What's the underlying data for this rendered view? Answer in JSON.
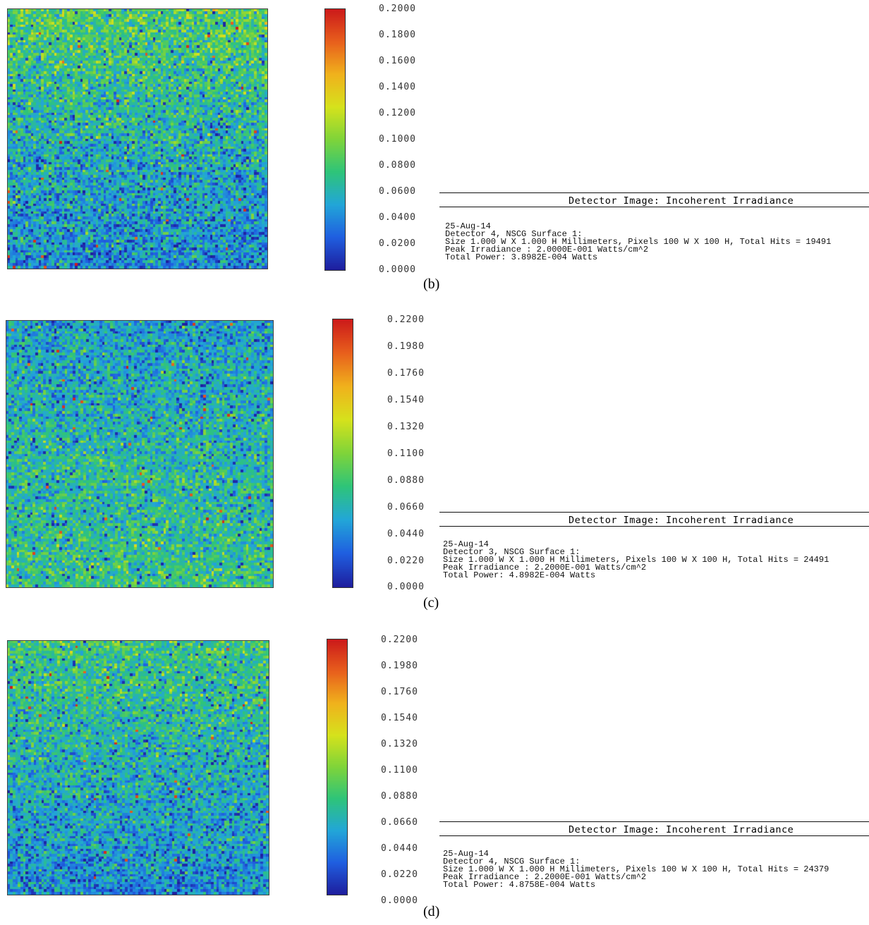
{
  "panels": [
    {
      "caption": "(b)",
      "colorbar_ticks": [
        "0.2000",
        "0.1800",
        "0.1600",
        "0.1400",
        "0.1200",
        "0.1000",
        "0.0800",
        "0.0600",
        "0.0400",
        "0.0200",
        "0.0000"
      ],
      "title": "Detector Image: Incoherent Irradiance",
      "info": [
        "25-Aug-14",
        "Detector 4, NSCG Surface 1:",
        "Size 1.000 W X 1.000 H Millimeters, Pixels 100 W X 100 H, Total Hits = 19491",
        "Peak Irradiance : 2.0000E-001 Watts/cm^2",
        "Total Power: 3.8982E-004 Watts"
      ]
    },
    {
      "caption": "(c)",
      "colorbar_ticks": [
        "0.2200",
        "0.1980",
        "0.1760",
        "0.1540",
        "0.1320",
        "0.1100",
        "0.0880",
        "0.0660",
        "0.0440",
        "0.0220",
        "0.0000"
      ],
      "title": "Detector Image: Incoherent Irradiance",
      "info": [
        "25-Aug-14",
        "Detector 3, NSCG Surface 1:",
        "Size 1.000 W X 1.000 H Millimeters, Pixels 100 W X 100 H, Total Hits = 24491",
        "Peak Irradiance : 2.2000E-001 Watts/cm^2",
        "Total Power: 4.8982E-004 Watts"
      ]
    },
    {
      "caption": "(d)",
      "colorbar_ticks": [
        "0.2200",
        "0.1980",
        "0.1760",
        "0.1540",
        "0.1320",
        "0.1100",
        "0.0880",
        "0.0660",
        "0.0440",
        "0.0220",
        "0.0000"
      ],
      "title": "Detector Image: Incoherent Irradiance",
      "info": [
        "25-Aug-14",
        "Detector 4, NSCG Surface 1:",
        "Size 1.000 W X 1.000 H Millimeters, Pixels 100 W X 100 H, Total Hits = 24379",
        "Peak Irradiance : 2.2000E-001 Watts/cm^2",
        "Total Power: 4.8758E-004 Watts"
      ]
    }
  ],
  "colormap": [
    "#1e1e9e",
    "#1f5fe0",
    "#22a6d8",
    "#2ec47a",
    "#7fd43a",
    "#d6e21c",
    "#f0b21c",
    "#e8601c",
    "#cc1a1a"
  ],
  "chart_data": [
    {
      "type": "heatmap",
      "grid_size": [
        100,
        100
      ],
      "value_range": [
        0.0,
        0.2
      ],
      "colorbar_ticks": [
        0.2,
        0.18,
        0.16,
        0.14,
        0.12,
        0.1,
        0.08,
        0.06,
        0.04,
        0.02,
        0.0
      ],
      "mean_value_by_row_band": {
        "top": 0.085,
        "middle": 0.06,
        "bottom": 0.04
      }
    },
    {
      "type": "heatmap",
      "grid_size": [
        100,
        100
      ],
      "value_range": [
        0.0,
        0.22
      ],
      "colorbar_ticks": [
        0.22,
        0.198,
        0.176,
        0.154,
        0.132,
        0.11,
        0.088,
        0.066,
        0.044,
        0.022,
        0.0
      ],
      "mean_value_by_row_band": {
        "top": 0.055,
        "middle": 0.07,
        "bottom": 0.08
      }
    },
    {
      "type": "heatmap",
      "grid_size": [
        100,
        100
      ],
      "value_range": [
        0.0,
        0.22
      ],
      "colorbar_ticks": [
        0.22,
        0.198,
        0.176,
        0.154,
        0.132,
        0.11,
        0.088,
        0.066,
        0.044,
        0.022,
        0.0
      ],
      "mean_value_by_row_band": {
        "top": 0.085,
        "middle": 0.065,
        "bottom": 0.045
      }
    }
  ]
}
